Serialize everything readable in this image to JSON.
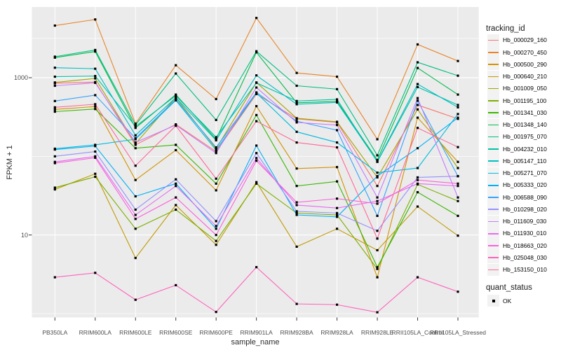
{
  "figure": {
    "panel_bg": "#EBEBEB",
    "grid_color": "#FFFFFF",
    "tick_text_color": "#4D4D4D",
    "point_color": "#000000",
    "legend_key_bg": "#F2F2F2"
  },
  "chart_data": {
    "type": "line",
    "title": "",
    "xlabel": "sample_name",
    "ylabel": "FPKM + 1",
    "y_scale": "log10",
    "ylim_log": [
      -0.05,
      3.9
    ],
    "grid": "on",
    "legend_position": "right",
    "legend_title": "tracking_id",
    "quant_legend_title": "quant_status",
    "quant_legend_items": [
      "OK"
    ],
    "y_ticks": [
      {
        "label": "1000",
        "value": 1000
      },
      {
        "label": "10",
        "value": 10
      }
    ],
    "y_minor_gridlines": [
      3162.28,
      100,
      1
    ],
    "x_categories": [
      "PB350LA",
      "RRIM600LA",
      "RRIM600LE",
      "RRIM600SE",
      "RRIM600PE",
      "RRIM901LA",
      "RRIM928BA",
      "RRIM928LA",
      "RRIM928LE",
      "RRII105LA_Control",
      "RRII105LA_Stressed"
    ],
    "series": [
      {
        "name": "Hb_000029_160",
        "color": "#F8766D",
        "values": [
          850,
          880,
          140,
          255,
          115,
          620,
          300,
          270,
          42,
          450,
          300
        ]
      },
      {
        "name": "Hb_000270_450",
        "color": "#E88526",
        "values": [
          4600,
          5500,
          260,
          1440,
          535,
          5750,
          1150,
          1030,
          165,
          2650,
          1630
        ]
      },
      {
        "name": "Hb_000500_290",
        "color": "#D39200",
        "values": [
          395,
          430,
          50,
          120,
          37,
          435,
          70,
          73,
          2.9,
          310,
          85
        ]
      },
      {
        "name": "Hb_000640_210",
        "color": "#C09B00",
        "values": [
          38,
          60,
          5.1,
          24,
          7.5,
          47,
          7.1,
          12,
          6.4,
          23,
          9.8
        ]
      },
      {
        "name": "Hb_001009_050",
        "color": "#A3A500",
        "values": [
          870,
          980,
          145,
          560,
          125,
          870,
          305,
          275,
          54,
          395,
          71
        ]
      },
      {
        "name": "Hb_001195_100",
        "color": "#7CAE00",
        "values": [
          40,
          55,
          12,
          21,
          8.4,
          45,
          19,
          18,
          3.7,
          44,
          27
        ]
      },
      {
        "name": "Hb_001341_030",
        "color": "#39B600",
        "values": [
          370,
          400,
          127,
          140,
          45,
          335,
          42,
          48,
          3.9,
          35,
          17.5
        ]
      },
      {
        "name": "Hb_001348_140",
        "color": "#00BB4E",
        "values": [
          1800,
          2150,
          230,
          610,
          165,
          2100,
          480,
          500,
          90,
          1330,
          610
        ]
      },
      {
        "name": "Hb_001975_070",
        "color": "#00BF7D",
        "values": [
          1850,
          2250,
          250,
          1130,
          290,
          2170,
          790,
          715,
          103,
          1570,
          1060
        ]
      },
      {
        "name": "Hb_004232_010",
        "color": "#00C1A3",
        "values": [
          1030,
          1050,
          240,
          590,
          175,
          860,
          505,
          530,
          85,
          760,
          450
        ]
      },
      {
        "name": "Hb_005147_110",
        "color": "#00BFC4",
        "values": [
          1340,
          1300,
          185,
          560,
          160,
          1070,
          460,
          485,
          86,
          830,
          420
        ]
      },
      {
        "name": "Hb_005271_070",
        "color": "#00BAE0",
        "values": [
          125,
          140,
          165,
          515,
          120,
          640,
          205,
          150,
          62,
          71,
          345
        ]
      },
      {
        "name": "Hb_005333_020",
        "color": "#00B0F6",
        "values": [
          122,
          135,
          31,
          45,
          12,
          137,
          18,
          17,
          56,
          127,
          310
        ]
      },
      {
        "name": "Hb_006588_090",
        "color": "#35A2FF",
        "values": [
          505,
          600,
          170,
          530,
          130,
          650,
          280,
          215,
          17.5,
          510,
          56
        ]
      },
      {
        "name": "Hb_010298_020",
        "color": "#9590FF",
        "values": [
          100,
          115,
          21,
          51,
          15,
          110,
          20,
          19,
          11.3,
          54,
          56
        ]
      },
      {
        "name": "Hb_011609_030",
        "color": "#C77CFF",
        "values": [
          790,
          860,
          150,
          250,
          110,
          750,
          270,
          250,
          30,
          550,
          30
        ]
      },
      {
        "name": "Hb_011930_010",
        "color": "#E76BF3",
        "values": [
          85,
          100,
          18,
          42,
          13,
          95,
          24,
          22,
          27,
          45,
          42
        ]
      },
      {
        "name": "Hb_018663_020",
        "color": "#FA62DB",
        "values": [
          82,
          96,
          16,
          30,
          10,
          88,
          26,
          29,
          25,
          50,
          45
        ]
      },
      {
        "name": "Hb_025048_030",
        "color": "#FF62BC",
        "values": [
          2.9,
          3.3,
          1.5,
          2.3,
          1.05,
          3.9,
          1.33,
          1.3,
          1.04,
          2.9,
          1.9
        ]
      },
      {
        "name": "Hb_153150_010",
        "color": "#FF6A98",
        "values": [
          420,
          460,
          76,
          245,
          52,
          280,
          150,
          130,
          9,
          230,
          131
        ]
      }
    ]
  }
}
